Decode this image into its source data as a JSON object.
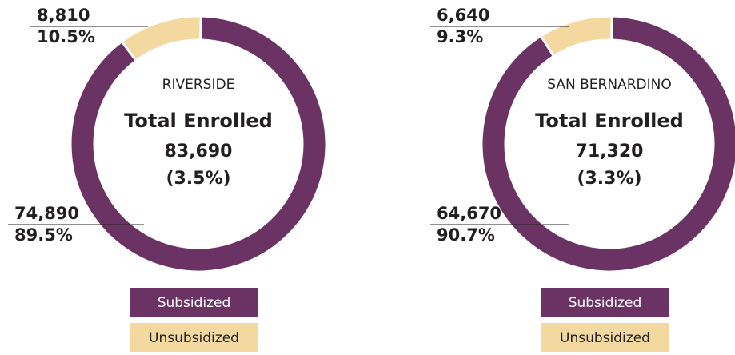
{
  "chart_data": [
    {
      "type": "donut",
      "title": "RIVERSIDE",
      "center_label": "Total Enrolled",
      "total": 83690,
      "total_label": "83,690",
      "total_share": 3.5,
      "total_share_label": "(3.5%)",
      "categories": [
        "Subsidized",
        "Unsubsidized"
      ],
      "colors": [
        "#6b3363",
        "#f3d9a0"
      ],
      "values": [
        74890,
        8810
      ],
      "value_labels": [
        "74,890",
        "8,810"
      ],
      "percents": [
        89.5,
        10.5
      ],
      "percent_labels": [
        "89.5%",
        "10.5%"
      ]
    },
    {
      "type": "donut",
      "title": "SAN BERNARDINO",
      "center_label": "Total Enrolled",
      "total": 71320,
      "total_label": "71,320",
      "total_share": 3.3,
      "total_share_label": "(3.3%)",
      "categories": [
        "Subsidized",
        "Unsubsidized"
      ],
      "colors": [
        "#6b3363",
        "#f3d9a0"
      ],
      "values": [
        64670,
        6640
      ],
      "value_labels": [
        "64,670",
        "6,640"
      ],
      "percents": [
        90.7,
        9.3
      ],
      "percent_labels": [
        "90.7%",
        "9.3%"
      ]
    }
  ]
}
